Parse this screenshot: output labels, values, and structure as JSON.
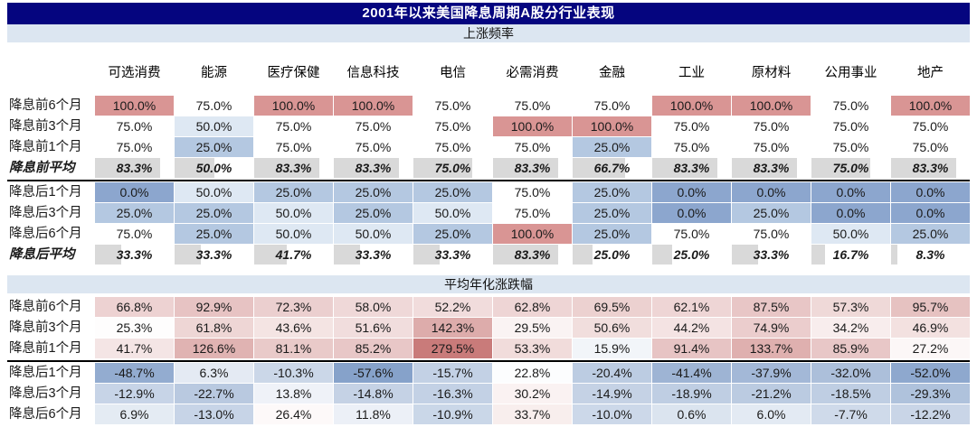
{
  "page_title": "2001年以来美国降息周期A股分行业表现",
  "colors": {
    "title_bg": "#05057F",
    "title_text": "#FFFFFF",
    "band_bg": "#DCE6F1",
    "text": "#1A1A1A",
    "separator": "#000000",
    "avg_bar": "#D9D9D9",
    "freq_scale": {
      "100": "#D99594",
      "75": "#FFFFFF",
      "50": "#DEE8F3",
      "25": "#B4C8E1",
      "0": "#8CA6CE"
    },
    "perf_scale": {
      "max_color": "#C97B7A",
      "min_color": "#86A2CA",
      "white_point": 25,
      "max_value": 279.5,
      "min_value": -57.6,
      "gamma_positive": 0.6
    }
  },
  "chart_data": [
    {
      "type": "heatmap",
      "title": "上涨频率",
      "unit": "%",
      "columns": [
        "可选消费",
        "能源",
        "医疗保健",
        "信息科技",
        "电信",
        "必需消费",
        "金融",
        "工业",
        "原材料",
        "公用事业",
        "地产"
      ],
      "rows": [
        {
          "label": "降息前6个月",
          "kind": "value",
          "values": [
            100.0,
            75.0,
            100.0,
            100.0,
            75.0,
            75.0,
            75.0,
            100.0,
            100.0,
            75.0,
            100.0
          ]
        },
        {
          "label": "降息前3个月",
          "kind": "value",
          "values": [
            75.0,
            50.0,
            75.0,
            75.0,
            75.0,
            100.0,
            100.0,
            75.0,
            75.0,
            75.0,
            75.0
          ]
        },
        {
          "label": "降息前1个月",
          "kind": "value",
          "values": [
            75.0,
            25.0,
            75.0,
            75.0,
            75.0,
            75.0,
            25.0,
            75.0,
            75.0,
            75.0,
            75.0
          ]
        },
        {
          "label": "降息前平均",
          "kind": "average",
          "values": [
            83.3,
            50.0,
            83.3,
            83.3,
            75.0,
            83.3,
            66.7,
            83.3,
            83.3,
            75.0,
            83.3
          ]
        },
        {
          "label": "降息后1个月",
          "kind": "value",
          "separator_before": true,
          "values": [
            0.0,
            50.0,
            25.0,
            25.0,
            25.0,
            75.0,
            25.0,
            0.0,
            0.0,
            0.0,
            0.0
          ]
        },
        {
          "label": "降息后3个月",
          "kind": "value",
          "values": [
            25.0,
            25.0,
            50.0,
            25.0,
            50.0,
            75.0,
            25.0,
            0.0,
            25.0,
            0.0,
            0.0
          ]
        },
        {
          "label": "降息后6个月",
          "kind": "value",
          "values": [
            75.0,
            25.0,
            50.0,
            50.0,
            25.0,
            100.0,
            25.0,
            75.0,
            75.0,
            50.0,
            25.0
          ]
        },
        {
          "label": "降息后平均",
          "kind": "average",
          "values": [
            33.3,
            33.3,
            41.7,
            33.3,
            33.3,
            83.3,
            25.0,
            25.0,
            33.3,
            16.7,
            8.3
          ]
        }
      ]
    },
    {
      "type": "heatmap",
      "title": "平均年化涨跌幅",
      "unit": "%",
      "columns": [
        "可选消费",
        "能源",
        "医疗保健",
        "信息科技",
        "电信",
        "必需消费",
        "金融",
        "工业",
        "原材料",
        "公用事业",
        "地产"
      ],
      "rows": [
        {
          "label": "降息前6个月",
          "kind": "value",
          "values": [
            66.8,
            92.9,
            72.3,
            58.0,
            52.2,
            62.8,
            69.5,
            62.1,
            87.5,
            57.3,
            95.7
          ]
        },
        {
          "label": "降息前3个月",
          "kind": "value",
          "values": [
            25.3,
            61.8,
            43.6,
            51.6,
            142.3,
            29.5,
            50.6,
            44.2,
            74.9,
            34.2,
            46.9
          ]
        },
        {
          "label": "降息前1个月",
          "kind": "value",
          "values": [
            41.7,
            126.6,
            81.1,
            85.2,
            279.5,
            53.3,
            15.9,
            91.4,
            133.7,
            85.9,
            27.2
          ]
        },
        {
          "label": "降息后1个月",
          "kind": "value",
          "separator_before": true,
          "values": [
            -48.7,
            6.3,
            -10.3,
            -57.6,
            -15.7,
            22.8,
            -20.4,
            -41.4,
            -37.9,
            -32.0,
            -52.0
          ]
        },
        {
          "label": "降息后3个月",
          "kind": "value",
          "values": [
            -12.9,
            -22.7,
            13.8,
            -14.8,
            -16.3,
            30.2,
            -14.9,
            -18.9,
            -21.2,
            -18.5,
            -29.3
          ]
        },
        {
          "label": "降息后6个月",
          "kind": "value",
          "values": [
            6.9,
            -13.0,
            26.4,
            11.8,
            -10.9,
            33.7,
            -10.0,
            0.6,
            6.0,
            -7.7,
            -12.2
          ]
        }
      ]
    }
  ]
}
